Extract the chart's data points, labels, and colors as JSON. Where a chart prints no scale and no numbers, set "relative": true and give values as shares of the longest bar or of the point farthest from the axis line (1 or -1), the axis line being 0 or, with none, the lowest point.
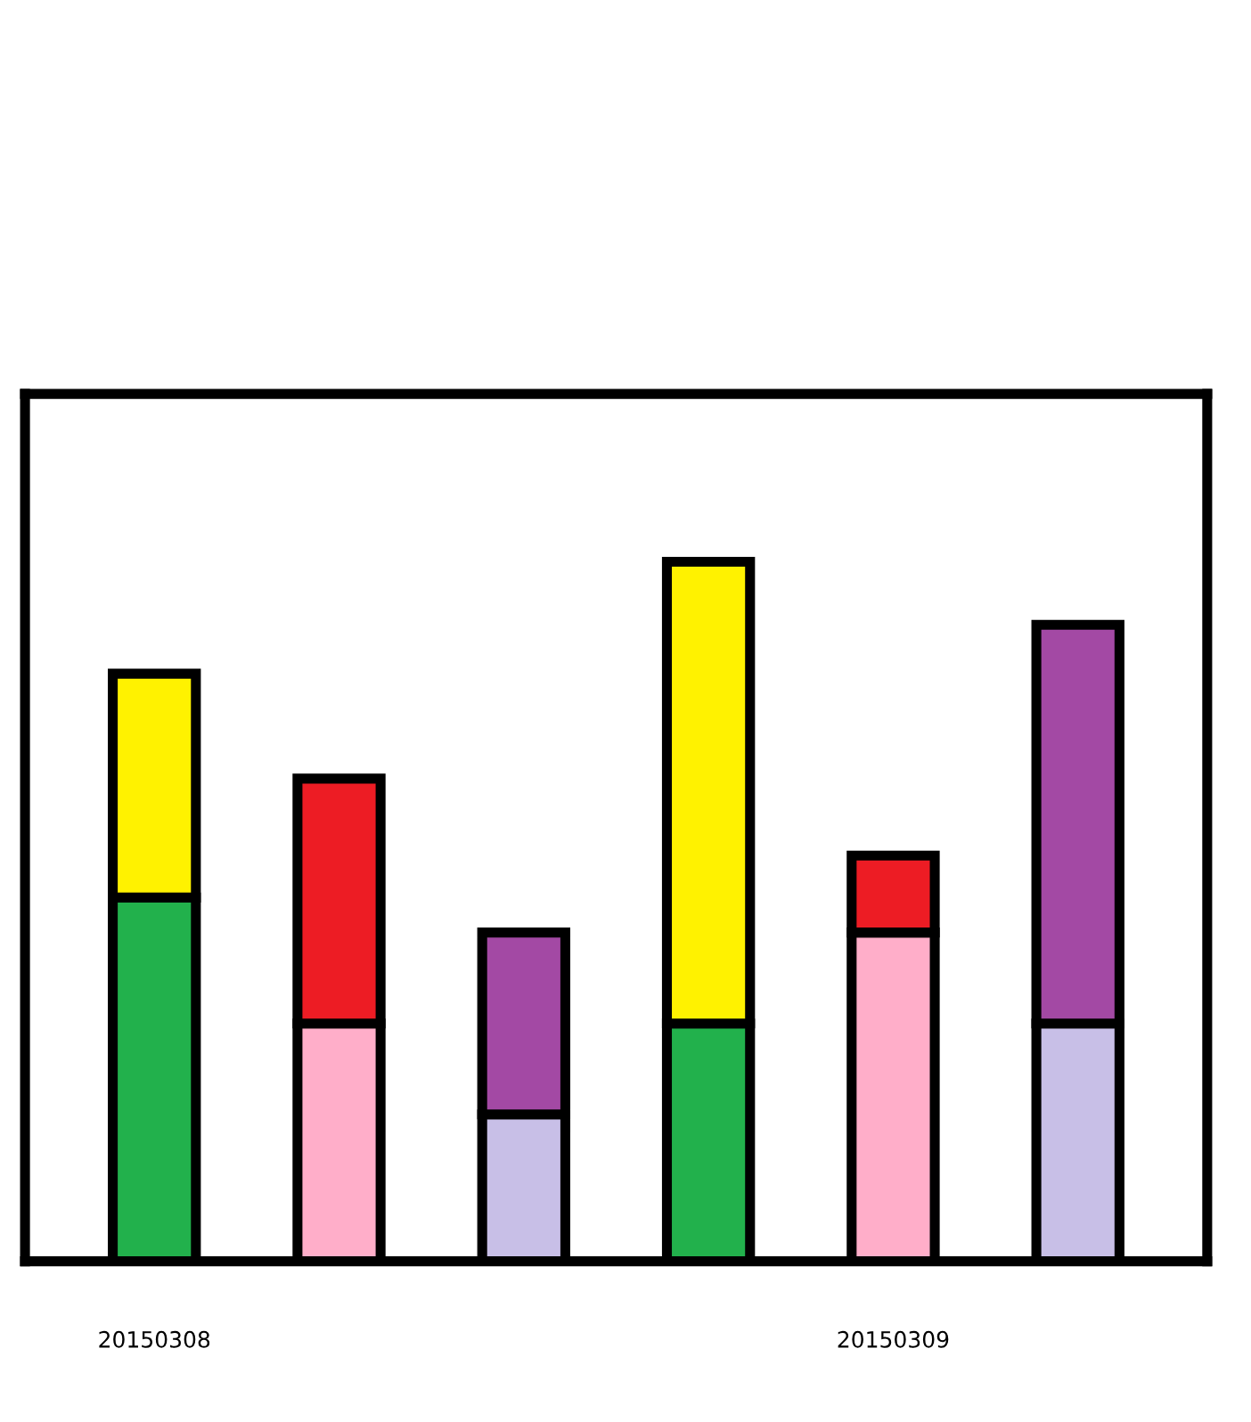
{
  "chart_data": {
    "type": "bar",
    "stacked": true,
    "relative": true,
    "categories": [
      "20150308",
      null,
      null,
      null,
      "20150309",
      null
    ],
    "series": [
      {
        "colors": [
          "#22b14c",
          "#ffaec9",
          "#c8bfe7",
          "#22b14c",
          "#ffaec9",
          "#c8bfe7"
        ],
        "values": [
          0.52,
          0.34,
          0.21,
          0.34,
          0.47,
          0.34
        ]
      },
      {
        "colors": [
          "#fff200",
          "#ed1c24",
          "#a349a4",
          "#fff200",
          "#ed1c24",
          "#a349a4"
        ],
        "values": [
          0.32,
          0.35,
          0.26,
          0.66,
          0.11,
          0.57
        ]
      }
    ],
    "grid": false,
    "legend": false
  }
}
